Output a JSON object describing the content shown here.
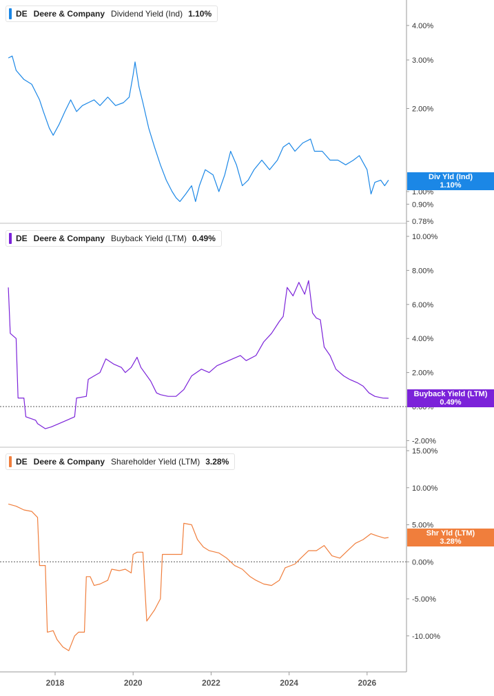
{
  "chart_data": [
    {
      "type": "line",
      "ticker": "DE",
      "company": "Deere & Company",
      "metric": "Dividend Yield (Ind)",
      "current_value": "1.10%",
      "flag_label": "Div Yld (Ind)",
      "flag_value": "1.10%",
      "color": "#1b87e6",
      "scale": "log",
      "y_ticks": [
        "4.00%",
        "3.00%",
        "2.00%",
        "1.00%",
        "0.90%",
        "0.78%"
      ],
      "series": [
        {
          "values": [
            [
              2016.8,
              3.05
            ],
            [
              2016.9,
              3.1
            ],
            [
              2017.0,
              2.75
            ],
            [
              2017.2,
              2.55
            ],
            [
              2017.4,
              2.45
            ],
            [
              2017.6,
              2.15
            ],
            [
              2017.7,
              1.95
            ],
            [
              2017.85,
              1.7
            ],
            [
              2017.95,
              1.6
            ],
            [
              2018.1,
              1.75
            ],
            [
              2018.25,
              1.95
            ],
            [
              2018.4,
              2.15
            ],
            [
              2018.55,
              1.95
            ],
            [
              2018.7,
              2.05
            ],
            [
              2018.85,
              2.1
            ],
            [
              2019.0,
              2.15
            ],
            [
              2019.15,
              2.05
            ],
            [
              2019.35,
              2.2
            ],
            [
              2019.55,
              2.05
            ],
            [
              2019.75,
              2.1
            ],
            [
              2019.9,
              2.2
            ],
            [
              2020.0,
              2.65
            ],
            [
              2020.05,
              2.95
            ],
            [
              2020.15,
              2.4
            ],
            [
              2020.25,
              2.1
            ],
            [
              2020.4,
              1.7
            ],
            [
              2020.55,
              1.45
            ],
            [
              2020.7,
              1.25
            ],
            [
              2020.85,
              1.1
            ],
            [
              2021.0,
              1.0
            ],
            [
              2021.1,
              0.95
            ],
            [
              2021.2,
              0.92
            ],
            [
              2021.35,
              0.98
            ],
            [
              2021.5,
              1.05
            ],
            [
              2021.6,
              0.92
            ],
            [
              2021.7,
              1.05
            ],
            [
              2021.85,
              1.2
            ],
            [
              2022.05,
              1.15
            ],
            [
              2022.2,
              1.0
            ],
            [
              2022.35,
              1.15
            ],
            [
              2022.5,
              1.4
            ],
            [
              2022.65,
              1.25
            ],
            [
              2022.8,
              1.05
            ],
            [
              2022.95,
              1.1
            ],
            [
              2023.1,
              1.2
            ],
            [
              2023.3,
              1.3
            ],
            [
              2023.5,
              1.2
            ],
            [
              2023.7,
              1.3
            ],
            [
              2023.85,
              1.45
            ],
            [
              2024.0,
              1.5
            ],
            [
              2024.15,
              1.4
            ],
            [
              2024.35,
              1.5
            ],
            [
              2024.55,
              1.55
            ],
            [
              2024.65,
              1.4
            ],
            [
              2024.85,
              1.4
            ],
            [
              2025.05,
              1.3
            ],
            [
              2025.25,
              1.3
            ],
            [
              2025.45,
              1.25
            ],
            [
              2025.65,
              1.3
            ],
            [
              2025.8,
              1.35
            ],
            [
              2026.0,
              1.2
            ],
            [
              2026.1,
              0.98
            ],
            [
              2026.2,
              1.08
            ],
            [
              2026.35,
              1.1
            ],
            [
              2026.45,
              1.05
            ],
            [
              2026.55,
              1.1
            ]
          ]
        }
      ]
    },
    {
      "type": "line",
      "ticker": "DE",
      "company": "Deere & Company",
      "metric": "Buyback Yield (LTM)",
      "current_value": "0.49%",
      "flag_label": "Buyback Yield (LTM)",
      "flag_value": "0.49%",
      "color": "#7b22d9",
      "y_ticks": [
        "10.00%",
        "8.00%",
        "6.00%",
        "4.00%",
        "2.00%",
        "0.00%",
        "-2.00%"
      ],
      "series": [
        {
          "values": [
            [
              2016.8,
              7.0
            ],
            [
              2016.85,
              4.3
            ],
            [
              2017.0,
              4.0
            ],
            [
              2017.05,
              0.5
            ],
            [
              2017.2,
              0.5
            ],
            [
              2017.25,
              -0.6
            ],
            [
              2017.5,
              -0.8
            ],
            [
              2017.55,
              -1.0
            ],
            [
              2017.75,
              -1.3
            ],
            [
              2017.9,
              -1.2
            ],
            [
              2018.1,
              -1.0
            ],
            [
              2018.3,
              -0.8
            ],
            [
              2018.5,
              -0.6
            ],
            [
              2018.55,
              0.5
            ],
            [
              2018.8,
              0.6
            ],
            [
              2018.85,
              1.6
            ],
            [
              2019.0,
              1.8
            ],
            [
              2019.15,
              2.0
            ],
            [
              2019.3,
              2.8
            ],
            [
              2019.5,
              2.5
            ],
            [
              2019.7,
              2.3
            ],
            [
              2019.8,
              2.0
            ],
            [
              2019.95,
              2.3
            ],
            [
              2020.1,
              2.9
            ],
            [
              2020.2,
              2.3
            ],
            [
              2020.45,
              1.5
            ],
            [
              2020.6,
              0.8
            ],
            [
              2020.7,
              0.7
            ],
            [
              2020.9,
              0.6
            ],
            [
              2021.1,
              0.6
            ],
            [
              2021.3,
              1.0
            ],
            [
              2021.5,
              1.8
            ],
            [
              2021.75,
              2.2
            ],
            [
              2021.95,
              2.0
            ],
            [
              2022.15,
              2.4
            ],
            [
              2022.35,
              2.6
            ],
            [
              2022.55,
              2.8
            ],
            [
              2022.75,
              3.0
            ],
            [
              2022.9,
              2.7
            ],
            [
              2023.15,
              3.0
            ],
            [
              2023.35,
              3.8
            ],
            [
              2023.55,
              4.3
            ],
            [
              2023.75,
              5.0
            ],
            [
              2023.85,
              5.3
            ],
            [
              2023.95,
              7.0
            ],
            [
              2024.1,
              6.5
            ],
            [
              2024.25,
              7.3
            ],
            [
              2024.4,
              6.6
            ],
            [
              2024.5,
              7.4
            ],
            [
              2024.6,
              5.5
            ],
            [
              2024.7,
              5.2
            ],
            [
              2024.8,
              5.1
            ],
            [
              2024.9,
              3.5
            ],
            [
              2025.05,
              3.0
            ],
            [
              2025.2,
              2.2
            ],
            [
              2025.4,
              1.8
            ],
            [
              2025.55,
              1.6
            ],
            [
              2025.75,
              1.4
            ],
            [
              2025.9,
              1.2
            ],
            [
              2026.05,
              0.8
            ],
            [
              2026.2,
              0.6
            ],
            [
              2026.4,
              0.5
            ],
            [
              2026.55,
              0.49
            ]
          ]
        }
      ]
    },
    {
      "type": "line",
      "ticker": "DE",
      "company": "Deere & Company",
      "metric": "Shareholder Yield (LTM)",
      "current_value": "3.28%",
      "flag_label": "Shr Yld (LTM)",
      "flag_value": "3.28%",
      "color": "#f07e3c",
      "y_ticks": [
        "15.00%",
        "10.00%",
        "5.00%",
        "0.00%",
        "-5.00%",
        "-10.00%"
      ],
      "series": [
        {
          "values": [
            [
              2016.8,
              7.8
            ],
            [
              2017.0,
              7.5
            ],
            [
              2017.2,
              7.0
            ],
            [
              2017.4,
              6.8
            ],
            [
              2017.55,
              6.0
            ],
            [
              2017.6,
              -0.5
            ],
            [
              2017.75,
              -0.5
            ],
            [
              2017.8,
              -9.5
            ],
            [
              2017.95,
              -9.3
            ],
            [
              2018.05,
              -10.5
            ],
            [
              2018.2,
              -11.5
            ],
            [
              2018.35,
              -12.0
            ],
            [
              2018.5,
              -10.0
            ],
            [
              2018.6,
              -9.5
            ],
            [
              2018.75,
              -9.5
            ],
            [
              2018.8,
              -2.0
            ],
            [
              2018.9,
              -2.0
            ],
            [
              2019.0,
              -3.2
            ],
            [
              2019.15,
              -3.0
            ],
            [
              2019.35,
              -2.5
            ],
            [
              2019.45,
              -1.0
            ],
            [
              2019.65,
              -1.2
            ],
            [
              2019.8,
              -1.0
            ],
            [
              2019.95,
              -1.5
            ],
            [
              2020.0,
              1.0
            ],
            [
              2020.1,
              1.3
            ],
            [
              2020.25,
              1.3
            ],
            [
              2020.35,
              -8.0
            ],
            [
              2020.55,
              -6.5
            ],
            [
              2020.7,
              -5.0
            ],
            [
              2020.75,
              1.0
            ],
            [
              2021.0,
              1.0
            ],
            [
              2021.25,
              1.0
            ],
            [
              2021.3,
              5.2
            ],
            [
              2021.5,
              5.0
            ],
            [
              2021.65,
              3.0
            ],
            [
              2021.8,
              2.0
            ],
            [
              2021.95,
              1.5
            ],
            [
              2022.2,
              1.2
            ],
            [
              2022.4,
              0.5
            ],
            [
              2022.6,
              -0.5
            ],
            [
              2022.8,
              -1.0
            ],
            [
              2023.0,
              -2.0
            ],
            [
              2023.15,
              -2.5
            ],
            [
              2023.35,
              -3.0
            ],
            [
              2023.55,
              -3.2
            ],
            [
              2023.75,
              -2.5
            ],
            [
              2023.9,
              -0.8
            ],
            [
              2024.15,
              -0.3
            ],
            [
              2024.3,
              0.5
            ],
            [
              2024.5,
              1.5
            ],
            [
              2024.7,
              1.5
            ],
            [
              2024.9,
              2.2
            ],
            [
              2025.1,
              0.8
            ],
            [
              2025.3,
              0.5
            ],
            [
              2025.5,
              1.5
            ],
            [
              2025.7,
              2.5
            ],
            [
              2025.9,
              3.0
            ],
            [
              2026.1,
              3.8
            ],
            [
              2026.25,
              3.5
            ],
            [
              2026.45,
              3.2
            ],
            [
              2026.55,
              3.28
            ]
          ]
        }
      ]
    }
  ],
  "x_axis": {
    "ticks": [
      "2018",
      "2020",
      "2022",
      "2024",
      "2026"
    ]
  }
}
